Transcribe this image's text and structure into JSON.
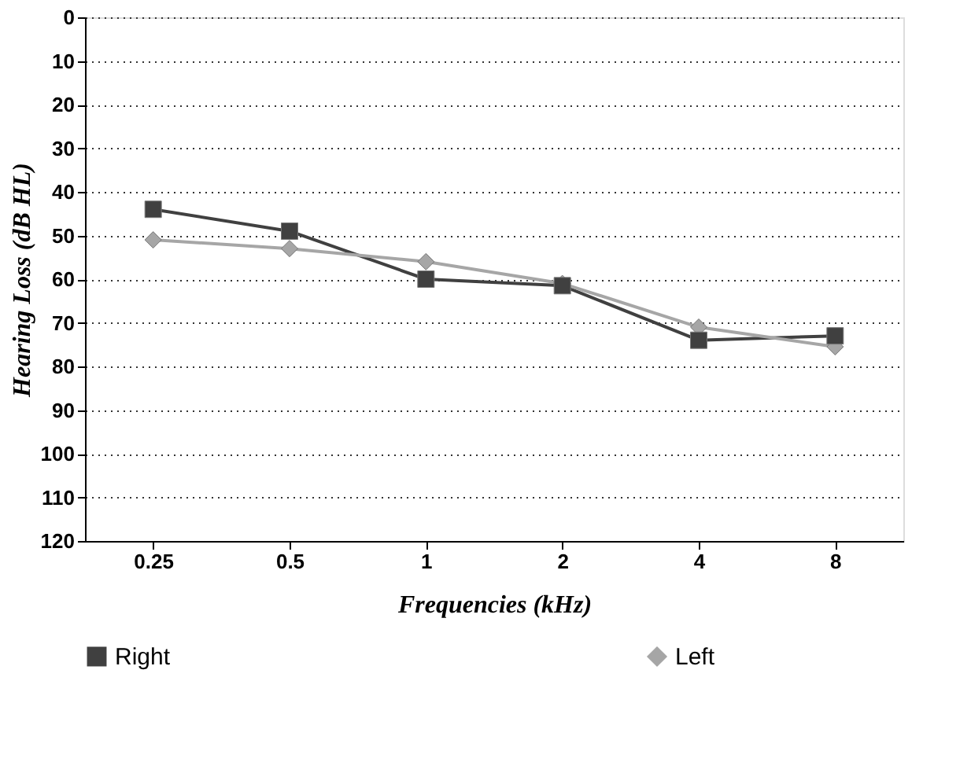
{
  "chart_data": {
    "type": "line",
    "xlabel": "Frequencies (kHz)",
    "ylabel": "Hearing Loss (dB HL)",
    "categories": [
      "0.25",
      "0.5",
      "1",
      "2",
      "4",
      "8"
    ],
    "series": [
      {
        "name": "Right",
        "color": "#404040",
        "marker": "square",
        "values": [
          44,
          49,
          60,
          61.5,
          74,
          73
        ]
      },
      {
        "name": "Left",
        "color": "#a6a6a6",
        "marker": "diamond",
        "values": [
          51,
          53,
          56,
          61,
          71,
          75.5
        ]
      }
    ],
    "ylim": [
      120,
      0
    ],
    "yticks": [
      0,
      10,
      20,
      30,
      40,
      50,
      60,
      70,
      80,
      90,
      100,
      110,
      120
    ],
    "grid": "y",
    "legend": "bottom",
    "line_style": "solid"
  }
}
